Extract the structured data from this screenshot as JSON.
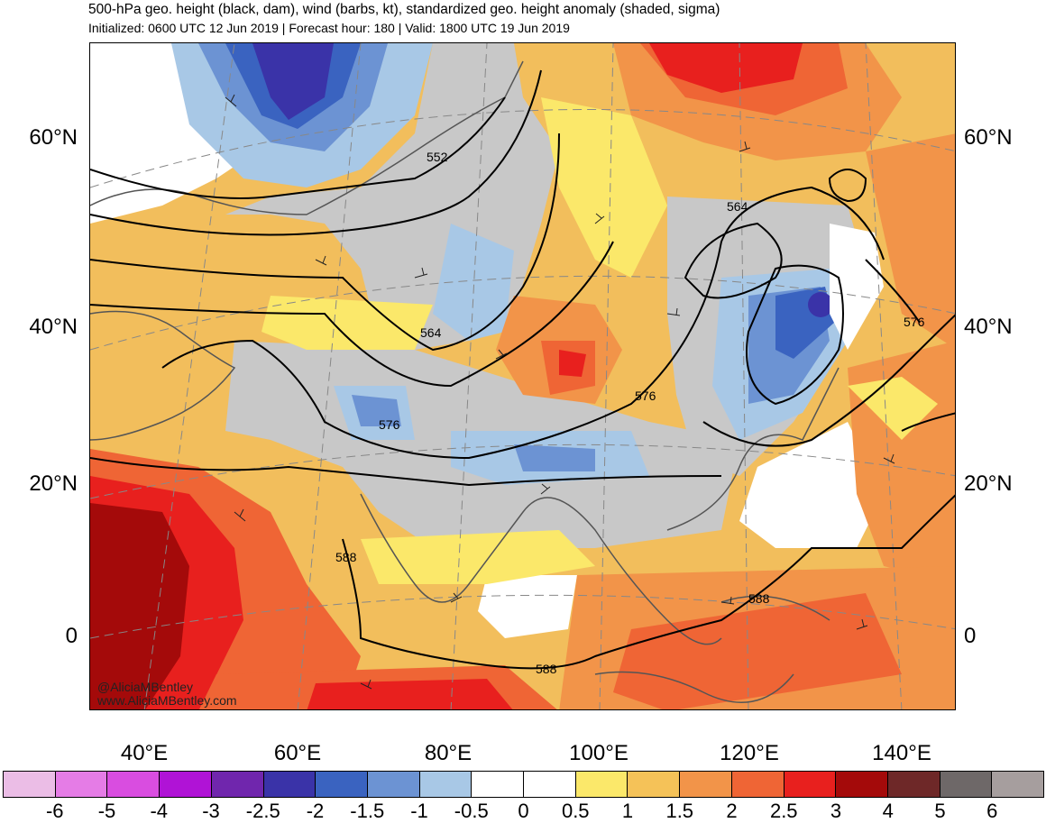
{
  "header": {
    "title": "500-hPa geo. height (black, dam), wind (barbs, kt), standardized geo. height anomaly (shaded, sigma)",
    "subtitle": "Initialized: 0600 UTC 12 Jun 2019 | Forecast hour: 180 | Valid: 1800 UTC 19 Jun 2019"
  },
  "map": {
    "lat_labels": [
      "60°N",
      "40°N",
      "20°N",
      "0"
    ],
    "lon_labels": [
      "40°E",
      "60°E",
      "80°E",
      "100°E",
      "120°E",
      "140°E"
    ],
    "contour_labels": [
      "552",
      "564",
      "564",
      "576",
      "576",
      "576",
      "588",
      "588",
      "588"
    ],
    "credit_handle": "@AliciaMBentley",
    "credit_url": "www.AliciaMBentley.com"
  },
  "colorbar": {
    "labels": [
      "-6",
      "-5",
      "-4",
      "-3",
      "-2.5",
      "-2",
      "-1.5",
      "-1",
      "-0.5",
      "0",
      "0.5",
      "1",
      "1.5",
      "2",
      "2.5",
      "3",
      "4",
      "5",
      "6"
    ],
    "colors": [
      "#ebbde6",
      "#e57ce6",
      "#d94de0",
      "#b013d6",
      "#7026ad",
      "#3a33a8",
      "#3a63c0",
      "#6c93d3",
      "#a8c8e6",
      "#ffffff",
      "#ffffff",
      "#fbe86a",
      "#f5c258",
      "#f29449",
      "#ef6535",
      "#e8201e",
      "#a40a0a",
      "#6e2828",
      "#6e6868",
      "#a69e9e"
    ]
  }
}
